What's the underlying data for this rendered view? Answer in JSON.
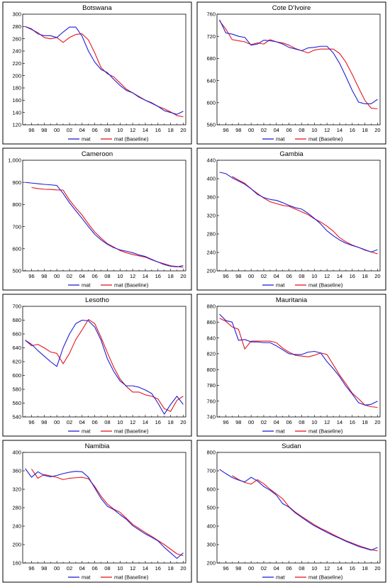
{
  "colors": {
    "mat": "#1f1fd6",
    "baseline": "#e5161c",
    "frame": "#000000",
    "background": "#ffffff"
  },
  "legend": {
    "mat": "mat",
    "baseline": "mat (Baseline)",
    "placement": "bottom-center"
  },
  "chart_data": [
    {
      "type": "line",
      "title": "Botswana",
      "xticks": [
        "96",
        "98",
        "00",
        "02",
        "04",
        "06",
        "08",
        "10",
        "12",
        "14",
        "16",
        "18",
        "20"
      ],
      "ylim": [
        120,
        300
      ],
      "yticks": [
        120,
        140,
        160,
        180,
        200,
        220,
        240,
        260,
        280,
        300
      ],
      "yticklabels": [
        "120",
        "140",
        "160",
        "180",
        "200",
        "220",
        "240",
        "260",
        "280",
        "300"
      ],
      "x": [
        1995,
        1996,
        1997,
        1998,
        1999,
        2000,
        2001,
        2002,
        2003,
        2004,
        2005,
        2006,
        2007,
        2008,
        2009,
        2010,
        2011,
        2012,
        2013,
        2014,
        2015,
        2016,
        2017,
        2018,
        2019,
        2020
      ],
      "series": [
        {
          "name": "mat",
          "values": [
            280,
            276,
            268,
            265,
            265,
            262,
            271,
            279,
            279,
            264,
            240,
            222,
            210,
            205,
            194,
            184,
            176,
            172,
            165,
            160,
            155,
            150,
            143,
            140,
            137,
            142
          ]
        },
        {
          "name": "mat (Baseline)",
          "values": [
            280,
            275,
            270,
            262,
            260,
            262,
            254,
            262,
            267,
            268,
            258,
            237,
            213,
            203,
            198,
            188,
            178,
            172,
            166,
            160,
            156,
            150,
            146,
            141,
            135,
            133
          ]
        }
      ]
    },
    {
      "type": "line",
      "title": "Cote D'Ivoire",
      "xticks": [
        "96",
        "98",
        "00",
        "02",
        "04",
        "06",
        "08",
        "10",
        "12",
        "14",
        "16",
        "18",
        "20"
      ],
      "ylim": [
        560,
        760
      ],
      "yticks": [
        560,
        600,
        640,
        680,
        720,
        760
      ],
      "yticklabels": [
        "560",
        "600",
        "640",
        "680",
        "720",
        "760"
      ],
      "x": [
        1995,
        1996,
        1997,
        1998,
        1999,
        2000,
        2001,
        2002,
        2003,
        2004,
        2005,
        2006,
        2007,
        2008,
        2009,
        2010,
        2011,
        2012,
        2013,
        2014,
        2015,
        2016,
        2017,
        2018,
        2019,
        2020
      ],
      "series": [
        {
          "name": "mat",
          "values": [
            750,
            726,
            724,
            720,
            718,
            704,
            706,
            713,
            712,
            710,
            706,
            700,
            697,
            694,
            699,
            700,
            702,
            702,
            690,
            671,
            647,
            622,
            601,
            598,
            598,
            606
          ]
        },
        {
          "name": "mat (Baseline)",
          "values": [
            748,
            733,
            714,
            712,
            710,
            705,
            708,
            706,
            714,
            710,
            708,
            704,
            698,
            694,
            690,
            695,
            697,
            697,
            697,
            689,
            673,
            651,
            627,
            604,
            590,
            589
          ]
        }
      ]
    },
    {
      "type": "line",
      "title": "Cameroon",
      "xticks": [
        "96",
        "98",
        "00",
        "02",
        "04",
        "06",
        "08",
        "10",
        "12",
        "14",
        "16",
        "18",
        "20"
      ],
      "ylim": [
        500,
        1000
      ],
      "yticks": [
        500,
        600,
        700,
        800,
        900,
        1000
      ],
      "yticklabels": [
        "500",
        "600",
        "700",
        "800",
        "900",
        "1,000"
      ],
      "x": [
        1995,
        1996,
        1997,
        1998,
        1999,
        2000,
        2001,
        2002,
        2003,
        2004,
        2005,
        2006,
        2007,
        2008,
        2009,
        2010,
        2011,
        2012,
        2013,
        2014,
        2015,
        2016,
        2017,
        2018,
        2019,
        2020
      ],
      "series": [
        {
          "name": "mat",
          "values": [
            900,
            897,
            894,
            891,
            889,
            886,
            850,
            808,
            772,
            737,
            700,
            665,
            640,
            620,
            605,
            595,
            589,
            582,
            572,
            565,
            552,
            540,
            528,
            521,
            518,
            524
          ]
        },
        {
          "name": "mat (Baseline)",
          "values": [
            null,
            877,
            872,
            869,
            868,
            866,
            865,
            820,
            785,
            752,
            712,
            676,
            648,
            623,
            608,
            592,
            582,
            574,
            568,
            562,
            550,
            540,
            532,
            523,
            520,
            516
          ]
        }
      ]
    },
    {
      "type": "line",
      "title": "Gambia",
      "xticks": [
        "96",
        "98",
        "00",
        "02",
        "04",
        "06",
        "08",
        "10",
        "12",
        "14",
        "16",
        "18",
        "20"
      ],
      "ylim": [
        200,
        440
      ],
      "yticks": [
        200,
        240,
        280,
        320,
        360,
        400,
        440
      ],
      "yticklabels": [
        "200",
        "240",
        "280",
        "320",
        "360",
        "400",
        "440"
      ],
      "x": [
        1995,
        1996,
        1997,
        1998,
        1999,
        2000,
        2001,
        2002,
        2003,
        2004,
        2005,
        2006,
        2007,
        2008,
        2009,
        2010,
        2011,
        2012,
        2013,
        2014,
        2015,
        2016,
        2017,
        2018,
        2019,
        2020
      ],
      "series": [
        {
          "name": "mat",
          "values": [
            414,
            411,
            402,
            395,
            388,
            378,
            366,
            359,
            355,
            353,
            348,
            342,
            337,
            334,
            325,
            314,
            302,
            287,
            276,
            267,
            260,
            255,
            251,
            246,
            241,
            246
          ]
        },
        {
          "name": "mat (Baseline)",
          "values": [
            null,
            null,
            405,
            397,
            390,
            378,
            368,
            358,
            350,
            346,
            342,
            340,
            334,
            328,
            322,
            313,
            306,
            297,
            286,
            272,
            263,
            256,
            251,
            245,
            241,
            237
          ]
        }
      ]
    },
    {
      "type": "line",
      "title": "Lesotho",
      "xticks": [
        "96",
        "98",
        "00",
        "02",
        "04",
        "06",
        "08",
        "10",
        "12",
        "14",
        "16",
        "18",
        "20"
      ],
      "ylim": [
        540,
        700
      ],
      "yticks": [
        540,
        560,
        580,
        600,
        620,
        640,
        660,
        680,
        700
      ],
      "yticklabels": [
        "540",
        "560",
        "580",
        "600",
        "620",
        "640",
        "660",
        "680",
        "700"
      ],
      "x": [
        1995,
        1996,
        1997,
        1998,
        1999,
        2000,
        2001,
        2002,
        2003,
        2004,
        2005,
        2006,
        2007,
        2008,
        2009,
        2010,
        2011,
        2012,
        2013,
        2014,
        2015,
        2016,
        2017,
        2018,
        2019,
        2020
      ],
      "series": [
        {
          "name": "mat",
          "values": [
            651,
            645,
            636,
            628,
            620,
            613,
            640,
            660,
            675,
            680,
            679,
            670,
            651,
            624,
            606,
            592,
            585,
            585,
            583,
            579,
            574,
            560,
            544,
            558,
            570,
            558
          ]
        },
        {
          "name": "mat (Baseline)",
          "values": [
            651,
            643,
            645,
            640,
            634,
            632,
            617,
            632,
            652,
            666,
            681,
            675,
            655,
            633,
            612,
            595,
            584,
            576,
            576,
            572,
            570,
            566,
            552,
            548,
            564,
            570
          ]
        }
      ]
    },
    {
      "type": "line",
      "title": "Mauritania",
      "xticks": [
        "96",
        "98",
        "00",
        "02",
        "04",
        "06",
        "08",
        "10",
        "12",
        "14",
        "16",
        "18",
        "20"
      ],
      "ylim": [
        740,
        880
      ],
      "yticks": [
        740,
        760,
        780,
        800,
        820,
        840,
        860,
        880
      ],
      "yticklabels": [
        "740",
        "760",
        "780",
        "800",
        "820",
        "840",
        "860",
        "880"
      ],
      "x": [
        1995,
        1996,
        1997,
        1998,
        1999,
        2000,
        2001,
        2002,
        2003,
        2004,
        2005,
        2006,
        2007,
        2008,
        2009,
        2010,
        2011,
        2012,
        2013,
        2014,
        2015,
        2016,
        2017,
        2018,
        2019,
        2020
      ],
      "series": [
        {
          "name": "mat",
          "values": [
            870,
            862,
            860,
            837,
            838,
            835,
            835,
            834,
            834,
            830,
            825,
            820,
            819,
            819,
            822,
            823,
            821,
            810,
            801,
            791,
            779,
            769,
            758,
            755,
            756,
            760
          ]
        },
        {
          "name": "mat (Baseline)",
          "values": [
            865,
            861,
            854,
            851,
            826,
            836,
            836,
            836,
            836,
            834,
            827,
            822,
            818,
            817,
            816,
            818,
            821,
            819,
            806,
            793,
            782,
            770,
            763,
            755,
            753,
            752
          ]
        }
      ]
    },
    {
      "type": "line",
      "title": "Namibia",
      "xticks": [
        "96",
        "98",
        "00",
        "02",
        "04",
        "06",
        "08",
        "10",
        "12",
        "14",
        "16",
        "18",
        "20"
      ],
      "ylim": [
        160,
        400
      ],
      "yticks": [
        160,
        200,
        240,
        280,
        320,
        360,
        400
      ],
      "yticklabels": [
        "160",
        "200",
        "240",
        "280",
        "320",
        "360",
        "400"
      ],
      "x": [
        1995,
        1996,
        1997,
        1998,
        1999,
        2000,
        2001,
        2002,
        2003,
        2004,
        2005,
        2006,
        2007,
        2008,
        2009,
        2010,
        2011,
        2012,
        2013,
        2014,
        2015,
        2016,
        2017,
        2018,
        2019,
        2020
      ],
      "series": [
        {
          "name": "mat",
          "values": [
            365,
            346,
            358,
            350,
            347,
            350,
            354,
            357,
            359,
            358,
            346,
            323,
            300,
            283,
            276,
            265,
            255,
            241,
            232,
            223,
            216,
            208,
            194,
            182,
            170,
            182
          ]
        },
        {
          "name": "mat (Baseline)",
          "values": [
            null,
            364,
            344,
            352,
            349,
            346,
            341,
            344,
            345,
            346,
            343,
            326,
            305,
            288,
            277,
            270,
            257,
            244,
            235,
            226,
            218,
            209,
            200,
            190,
            180,
            176
          ]
        }
      ]
    },
    {
      "type": "line",
      "title": "Sudan",
      "xticks": [
        "96",
        "98",
        "00",
        "02",
        "04",
        "06",
        "08",
        "10",
        "12",
        "14",
        "16",
        "18",
        "20"
      ],
      "ylim": [
        200,
        800
      ],
      "yticks": [
        200,
        300,
        400,
        500,
        600,
        700,
        800
      ],
      "yticklabels": [
        "200",
        "300",
        "400",
        "500",
        "600",
        "700",
        "800"
      ],
      "x": [
        1995,
        1996,
        1997,
        1998,
        1999,
        2000,
        2001,
        2002,
        2003,
        2004,
        2005,
        2006,
        2007,
        2008,
        2009,
        2010,
        2011,
        2012,
        2013,
        2014,
        2015,
        2016,
        2017,
        2018,
        2019,
        2020
      ],
      "series": [
        {
          "name": "mat",
          "values": [
            708,
            685,
            664,
            650,
            640,
            665,
            645,
            615,
            595,
            568,
            522,
            503,
            472,
            448,
            424,
            402,
            384,
            366,
            349,
            334,
            318,
            304,
            290,
            280,
            270,
            284
          ]
        },
        {
          "name": "mat (Baseline)",
          "values": [
            null,
            null,
            674,
            653,
            637,
            628,
            652,
            630,
            600,
            575,
            548,
            505,
            476,
            452,
            430,
            408,
            388,
            372,
            354,
            337,
            321,
            308,
            294,
            283,
            272,
            266
          ]
        }
      ]
    }
  ]
}
